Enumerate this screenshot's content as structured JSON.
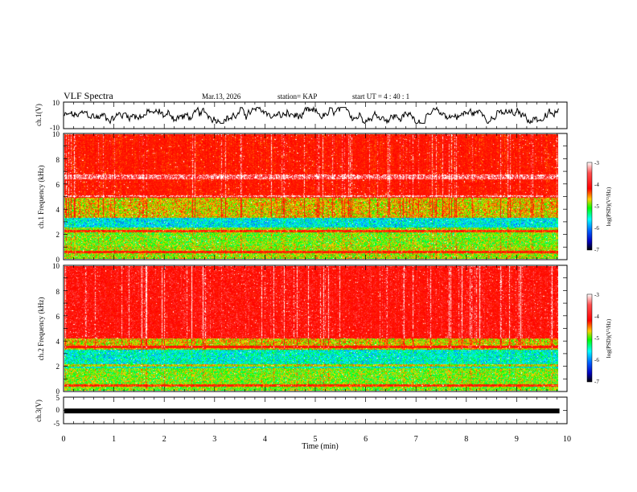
{
  "header": {
    "title": "VLF Spectra",
    "date": "Mar.13, 2026",
    "station": "station= KAP",
    "start": "start  UT =   4 : 40 : 1"
  },
  "chart_data": [
    {
      "id": "ch1",
      "type": "line",
      "ylabel": "ch.1(V)",
      "ylim": [
        -10,
        10
      ],
      "yticks": [
        "10",
        "-10"
      ],
      "xlim": [
        0,
        10
      ],
      "data_extent_min": [
        0,
        9.85
      ],
      "waveform_range_v": [
        -6,
        6
      ]
    },
    {
      "id": "ch1_spectrogram",
      "type": "heatmap",
      "ylabel": "ch.1 Frequency (kHz)",
      "ylim": [
        0,
        10
      ],
      "yticks": [
        "0",
        "2",
        "4",
        "6",
        "8",
        "10"
      ],
      "xlim": [
        0,
        10
      ],
      "colorbar": {
        "label": "log(PSD)(V²/Hz)",
        "range": [
          -7,
          -3
        ],
        "ticks": [
          "-3",
          "-4",
          "-5",
          "-6",
          "-7"
        ]
      },
      "bands": [
        {
          "from_khz": 0,
          "to_khz": 1,
          "level": -5.0
        },
        {
          "from_khz": 1,
          "to_khz": 2.5,
          "level": -5.1
        },
        {
          "from_khz": 2.5,
          "to_khz": 3.3,
          "level": -5.8
        },
        {
          "from_khz": 3.3,
          "to_khz": 5,
          "level": -4.9
        },
        {
          "from_khz": 5,
          "to_khz": 10,
          "level": -4.2
        }
      ],
      "lines_khz": [
        0.5,
        2.2,
        5.0,
        6.5,
        6.7
      ]
    },
    {
      "id": "ch2_spectrogram",
      "type": "heatmap",
      "ylabel": "ch.2 Frequency (kHz)",
      "ylim": [
        0,
        10
      ],
      "yticks": [
        "0",
        "2",
        "4",
        "6",
        "8",
        "10"
      ],
      "xlim": [
        0,
        10
      ],
      "colorbar": {
        "label": "log(PSD)(V²/Hz)",
        "range": [
          -7,
          -3
        ],
        "ticks": [
          "-3",
          "-4",
          "-5",
          "-6",
          "-7"
        ]
      },
      "bands": [
        {
          "from_khz": 0,
          "to_khz": 1.8,
          "level": -5.1
        },
        {
          "from_khz": 1.8,
          "to_khz": 3.3,
          "level": -5.7
        },
        {
          "from_khz": 3.3,
          "to_khz": 4.2,
          "level": -4.9
        },
        {
          "from_khz": 4.2,
          "to_khz": 10,
          "level": -3.9
        }
      ],
      "lines_khz": [
        0.4,
        2.0,
        3.5
      ]
    },
    {
      "id": "ch3",
      "type": "line",
      "ylabel": "ch.3(V)",
      "ylim": [
        -5,
        5
      ],
      "yticks": [
        "5",
        "0",
        "-5"
      ],
      "xlim": [
        0,
        10
      ],
      "xlabel": "Time  (min)",
      "xticks": [
        "0",
        "1",
        "2",
        "3",
        "4",
        "5",
        "6",
        "7",
        "8",
        "9",
        "10"
      ],
      "value_v": -0.2
    }
  ]
}
